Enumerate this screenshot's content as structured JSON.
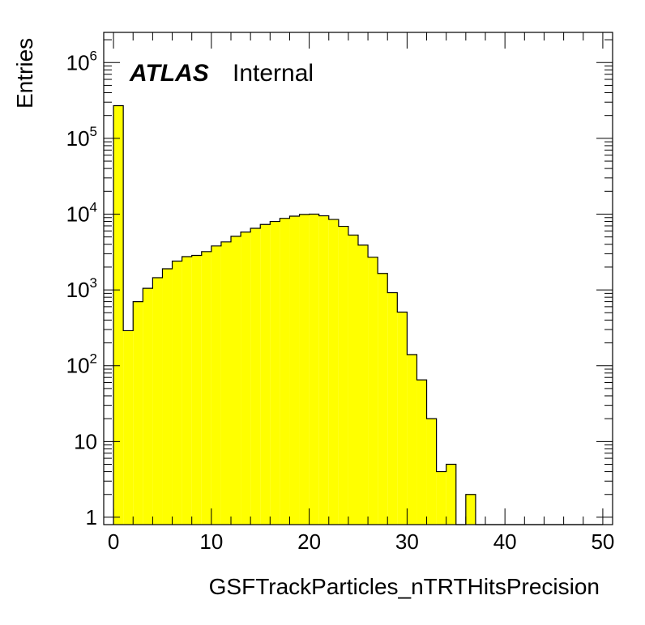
{
  "chart_data": {
    "type": "histogram",
    "scale_y": "log",
    "xlabel": "GSFTrackParticles_nTRTHitsPrecision",
    "ylabel": "Entries",
    "xlim": [
      -1,
      51
    ],
    "ylim": [
      0.8,
      2500000
    ],
    "bin_width": 1,
    "bin_edges_start": 0,
    "values": [
      270000,
      290,
      700,
      1050,
      1450,
      1900,
      2400,
      2750,
      2850,
      3200,
      3800,
      4300,
      5100,
      5800,
      6500,
      7300,
      8000,
      8800,
      9400,
      9900,
      10000,
      9500,
      8500,
      6900,
      5300,
      3900,
      2700,
      1650,
      920,
      510,
      140,
      65,
      20,
      4,
      5,
      0,
      2,
      0,
      0,
      0,
      0,
      0,
      0,
      0,
      0,
      0,
      0,
      0,
      0,
      0
    ],
    "fill_color": "#ffff00",
    "line_color": "#000000",
    "x_ticks": [
      "0",
      "10",
      "20",
      "30",
      "40",
      "50"
    ],
    "y_ticks": [
      {
        "base": "1",
        "exp": ""
      },
      {
        "base": "10",
        "exp": ""
      },
      {
        "base": "10",
        "exp": "2"
      },
      {
        "base": "10",
        "exp": "3"
      },
      {
        "base": "10",
        "exp": "4"
      },
      {
        "base": "10",
        "exp": "5"
      },
      {
        "base": "10",
        "exp": "6"
      }
    ],
    "annotations": {
      "atlas": "ATLAS",
      "internal": "Internal"
    }
  }
}
